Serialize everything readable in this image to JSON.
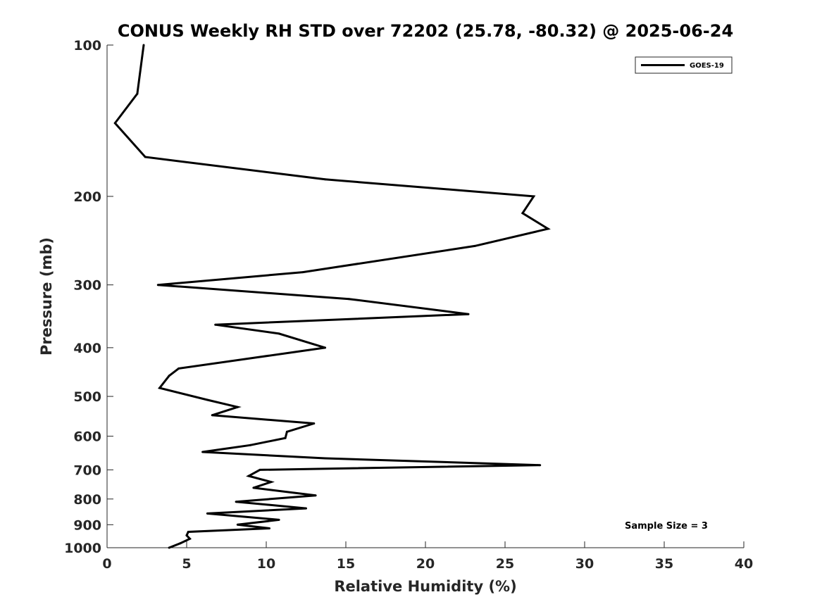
{
  "chart_data": {
    "type": "line",
    "title": "CONUS Weekly RH STD over 72202 (25.78, -80.32) @ 2025-06-24",
    "xlabel": "Relative Humidity (%)",
    "ylabel": "Pressure (mb)",
    "xlim": [
      0,
      40
    ],
    "ylim": [
      100,
      1000
    ],
    "yscale": "log",
    "yreversed": true,
    "xticks": [
      "0",
      "5",
      "10",
      "15",
      "20",
      "25",
      "30",
      "35",
      "40"
    ],
    "yticks": [
      "100",
      "200",
      "300",
      "400",
      "500",
      "600",
      "700",
      "800",
      "900",
      "1000"
    ],
    "legend_position": "top-right",
    "annotation": "Sample Size = 3",
    "series": [
      {
        "name": "GOES-19",
        "color": "#000000",
        "x": [
          2.3,
          1.9,
          0.5,
          2.4,
          13.7,
          26.8,
          26.1,
          27.7,
          23.1,
          12.3,
          3.2,
          15.2,
          22.7,
          6.8,
          10.8,
          13.7,
          4.5,
          3.9,
          3.3,
          6.3,
          8.2,
          6.6,
          13.0,
          11.3,
          11.2,
          9.0,
          6.0,
          13.7,
          27.2,
          9.6,
          8.9,
          10.3,
          9.2,
          13.1,
          8.1,
          12.5,
          6.3,
          10.8,
          8.2,
          10.2,
          5.1,
          5.0,
          5.2,
          4.6,
          3.9
        ],
        "y": [
          100,
          125,
          143,
          167,
          185,
          200,
          216,
          232,
          251,
          283,
          300,
          320,
          343,
          360,
          375,
          400,
          440,
          455,
          481,
          508,
          525,
          545,
          566,
          588,
          605,
          625,
          645,
          664,
          685,
          700,
          720,
          740,
          760,
          787,
          810,
          835,
          855,
          880,
          900,
          915,
          930,
          945,
          960,
          980,
          1000
        ]
      }
    ]
  }
}
